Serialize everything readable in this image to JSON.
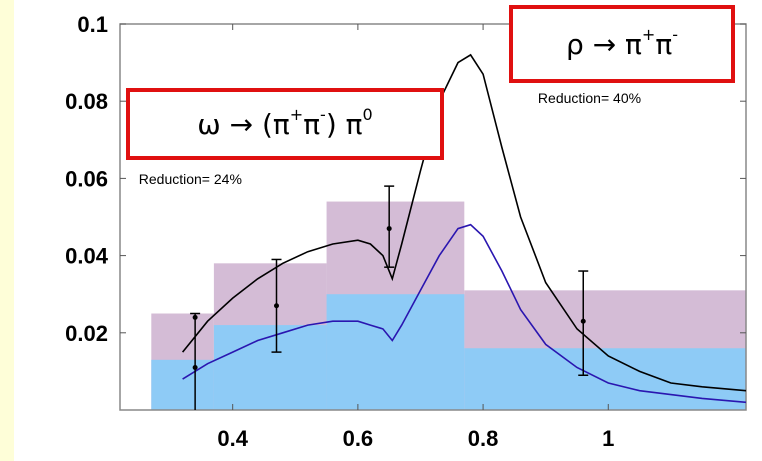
{
  "chart_data": {
    "type": "line",
    "xlim": [
      0.22,
      1.22
    ],
    "ylim": [
      0,
      0.1
    ],
    "x_ticks": [
      "0.4",
      "0.6",
      "0.8",
      "1"
    ],
    "x_tick_values": [
      0.4,
      0.6,
      0.8,
      1.0
    ],
    "y_ticks": [
      "0.1",
      "0.08",
      "0.06",
      "0.04",
      "0.02"
    ],
    "y_tick_values": [
      0.1,
      0.08,
      0.06,
      0.04,
      0.02
    ],
    "bins_total": [
      {
        "x0": 0.27,
        "x1": 0.37,
        "y": 0.025
      },
      {
        "x0": 0.37,
        "x1": 0.55,
        "y": 0.038
      },
      {
        "x0": 0.55,
        "x1": 0.77,
        "y": 0.054
      },
      {
        "x0": 0.77,
        "x1": 1.22,
        "y": 0.031
      }
    ],
    "bins_reduced": [
      {
        "x0": 0.27,
        "x1": 0.37,
        "y": 0.013
      },
      {
        "x0": 0.37,
        "x1": 0.55,
        "y": 0.022
      },
      {
        "x0": 0.55,
        "x1": 0.77,
        "y": 0.03
      },
      {
        "x0": 0.77,
        "x1": 1.22,
        "y": 0.016
      }
    ],
    "series": [
      {
        "color": "#000000",
        "x": [
          0.32,
          0.36,
          0.4,
          0.44,
          0.48,
          0.52,
          0.56,
          0.6,
          0.62,
          0.64,
          0.655,
          0.67,
          0.7,
          0.73,
          0.76,
          0.78,
          0.8,
          0.83,
          0.86,
          0.9,
          0.95,
          1.0,
          1.05,
          1.1,
          1.15,
          1.22
        ],
        "y": [
          0.015,
          0.023,
          0.029,
          0.034,
          0.038,
          0.041,
          0.043,
          0.044,
          0.043,
          0.04,
          0.034,
          0.043,
          0.062,
          0.08,
          0.09,
          0.092,
          0.087,
          0.068,
          0.05,
          0.033,
          0.021,
          0.014,
          0.01,
          0.007,
          0.006,
          0.005
        ]
      },
      {
        "color": "#2a16b0",
        "x": [
          0.32,
          0.36,
          0.4,
          0.44,
          0.48,
          0.52,
          0.56,
          0.6,
          0.62,
          0.64,
          0.655,
          0.67,
          0.7,
          0.73,
          0.76,
          0.78,
          0.8,
          0.83,
          0.86,
          0.9,
          0.95,
          1.0,
          1.05,
          1.1,
          1.15,
          1.22
        ],
        "y": [
          0.008,
          0.012,
          0.015,
          0.018,
          0.02,
          0.022,
          0.023,
          0.023,
          0.022,
          0.021,
          0.018,
          0.022,
          0.031,
          0.04,
          0.047,
          0.048,
          0.045,
          0.036,
          0.026,
          0.017,
          0.011,
          0.007,
          0.005,
          0.004,
          0.003,
          0.002
        ]
      }
    ],
    "error_points": [
      {
        "x": 0.34,
        "y": 0.011,
        "lo": 0.0,
        "hi": 0.025
      },
      {
        "x": 0.34,
        "y": 0.024,
        "lo": 0.024,
        "hi": 0.024
      },
      {
        "x": 0.47,
        "y": 0.027,
        "lo": 0.015,
        "hi": 0.039
      },
      {
        "x": 0.65,
        "y": 0.047,
        "lo": 0.037,
        "hi": 0.058
      },
      {
        "x": 0.96,
        "y": 0.023,
        "lo": 0.009,
        "hi": 0.036
      }
    ],
    "annotations": {
      "reduction_left": "Reduction= 24%",
      "reduction_right": "Reduction= 40%"
    },
    "colors": {
      "total_fill": "#d4bcd6",
      "reduced_fill": "#8ecbf6",
      "curve_total": "#000000",
      "curve_reduced": "#2a16b0",
      "box_border": "#e01010",
      "background": "#fefed8"
    }
  },
  "labels": {
    "omega_decay": {
      "main": "ω → (π",
      "sup1": "+",
      "mid": "π",
      "sup2": "-",
      "tail": ") π",
      "sup3": "0"
    },
    "rho_decay": {
      "main": "ρ → π",
      "sup1": "+",
      "mid": "π",
      "sup2": "-"
    }
  }
}
